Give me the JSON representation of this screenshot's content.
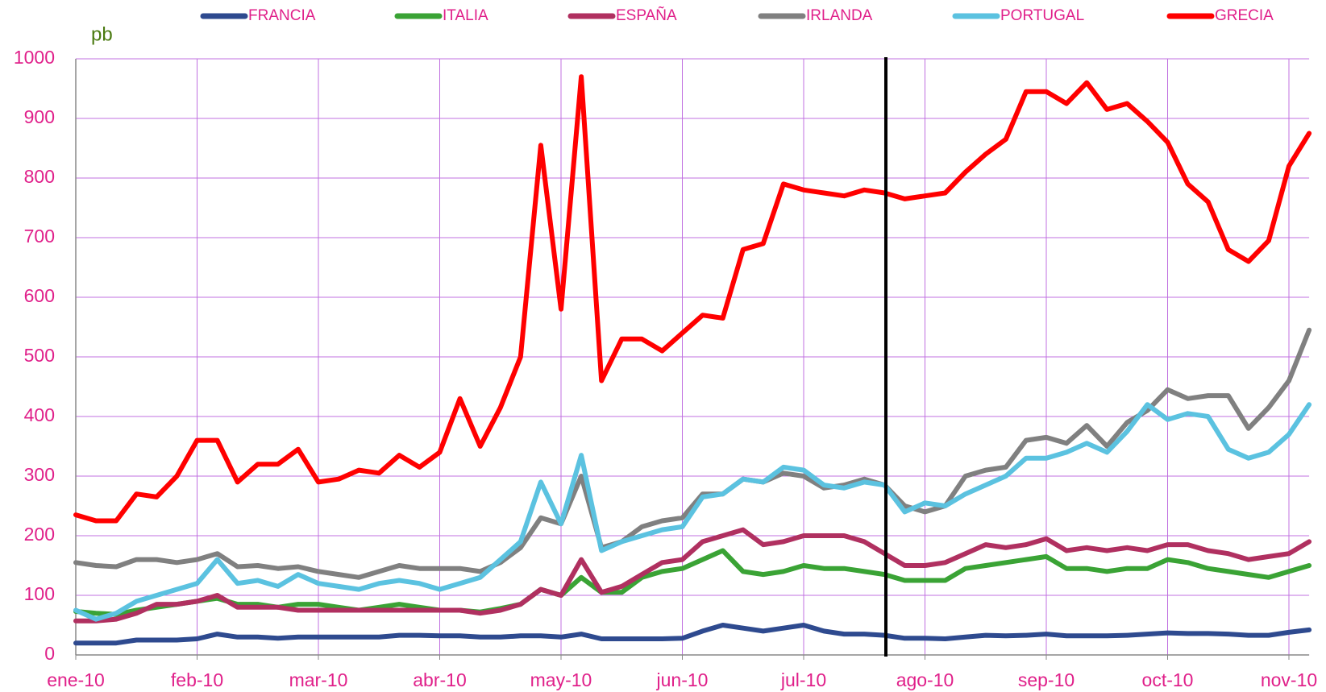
{
  "chart_data": {
    "type": "line",
    "y_unit_label": "pb",
    "categories": [
      "ene-10",
      null,
      null,
      null,
      null,
      null,
      "feb-10",
      null,
      null,
      null,
      null,
      null,
      "mar-10",
      null,
      null,
      null,
      null,
      null,
      "abr-10",
      null,
      null,
      null,
      null,
      null,
      "may-10",
      null,
      null,
      null,
      null,
      null,
      "jun-10",
      null,
      null,
      null,
      null,
      null,
      "jul-10",
      null,
      null,
      null,
      null,
      null,
      "ago-10",
      null,
      null,
      null,
      null,
      null,
      "sep-10",
      null,
      null,
      null,
      null,
      null,
      "oct-10",
      null,
      null,
      null,
      null,
      null,
      "nov-10",
      null
    ],
    "series": [
      {
        "name": "FRANCIA",
        "color": "#2e4a8f",
        "values": [
          20,
          20,
          20,
          25,
          25,
          25,
          27,
          35,
          30,
          30,
          28,
          30,
          30,
          30,
          30,
          30,
          33,
          33,
          32,
          32,
          30,
          30,
          32,
          32,
          30,
          35,
          27,
          27,
          27,
          27,
          28,
          40,
          50,
          45,
          40,
          45,
          50,
          40,
          35,
          35,
          33,
          28,
          28,
          27,
          30,
          33,
          32,
          33,
          35,
          32,
          32,
          32,
          33,
          35,
          37,
          36,
          36,
          35,
          33,
          33,
          38,
          42
        ]
      },
      {
        "name": "ITALIA",
        "color": "#3aa335",
        "values": [
          73,
          70,
          68,
          75,
          80,
          85,
          90,
          95,
          85,
          85,
          80,
          85,
          85,
          80,
          75,
          80,
          85,
          80,
          75,
          75,
          72,
          78,
          85,
          110,
          100,
          130,
          105,
          105,
          130,
          140,
          145,
          160,
          175,
          140,
          135,
          140,
          150,
          145,
          145,
          140,
          135,
          125,
          125,
          125,
          145,
          150,
          155,
          160,
          165,
          145,
          145,
          140,
          145,
          145,
          160,
          155,
          145,
          140,
          135,
          130,
          140,
          150
        ]
      },
      {
        "name": "ESPAÑA",
        "color": "#b03060",
        "values": [
          57,
          57,
          60,
          70,
          85,
          85,
          90,
          100,
          80,
          80,
          80,
          75,
          75,
          75,
          75,
          75,
          75,
          75,
          75,
          75,
          70,
          75,
          85,
          110,
          100,
          160,
          105,
          115,
          135,
          155,
          160,
          190,
          200,
          210,
          185,
          190,
          200,
          200,
          200,
          190,
          170,
          150,
          150,
          155,
          170,
          185,
          180,
          185,
          195,
          175,
          180,
          175,
          180,
          175,
          185,
          185,
          175,
          170,
          160,
          165,
          170,
          190
        ]
      },
      {
        "name": "IRLANDA",
        "color": "#808080",
        "values": [
          155,
          150,
          148,
          160,
          160,
          155,
          160,
          170,
          148,
          150,
          145,
          148,
          140,
          135,
          130,
          140,
          150,
          145,
          145,
          145,
          140,
          155,
          180,
          230,
          220,
          300,
          180,
          190,
          215,
          225,
          230,
          270,
          270,
          295,
          290,
          305,
          300,
          280,
          285,
          295,
          285,
          250,
          240,
          250,
          300,
          310,
          315,
          360,
          365,
          355,
          385,
          350,
          390,
          410,
          445,
          430,
          435,
          435,
          380,
          415,
          460,
          545
        ]
      },
      {
        "name": "PORTUGAL",
        "color": "#5bc2e0",
        "values": [
          75,
          60,
          70,
          90,
          100,
          110,
          120,
          160,
          120,
          125,
          115,
          135,
          120,
          115,
          110,
          120,
          125,
          120,
          110,
          120,
          130,
          160,
          190,
          290,
          220,
          335,
          175,
          190,
          200,
          210,
          215,
          265,
          270,
          295,
          290,
          315,
          310,
          285,
          280,
          290,
          285,
          240,
          255,
          250,
          270,
          285,
          300,
          330,
          330,
          340,
          355,
          340,
          375,
          420,
          395,
          405,
          400,
          345,
          330,
          340,
          370,
          420
        ]
      },
      {
        "name": "GRECIA",
        "color": "#ff0000",
        "values": [
          235,
          225,
          225,
          270,
          265,
          300,
          360,
          360,
          290,
          320,
          320,
          345,
          290,
          295,
          310,
          305,
          335,
          315,
          340,
          430,
          350,
          415,
          500,
          855,
          580,
          970,
          460,
          530,
          530,
          510,
          540,
          570,
          565,
          680,
          690,
          790,
          780,
          775,
          770,
          780,
          775,
          765,
          770,
          775,
          810,
          840,
          865,
          945,
          945,
          925,
          960,
          915,
          925,
          895,
          860,
          790,
          760,
          680,
          660,
          695,
          820,
          875
        ]
      }
    ],
    "ylim": [
      0,
      1000
    ],
    "yticks": [
      0,
      100,
      200,
      300,
      400,
      500,
      600,
      700,
      800,
      900,
      1000
    ],
    "grid": true,
    "grid_color": "#c070e0",
    "legend": "top"
  }
}
